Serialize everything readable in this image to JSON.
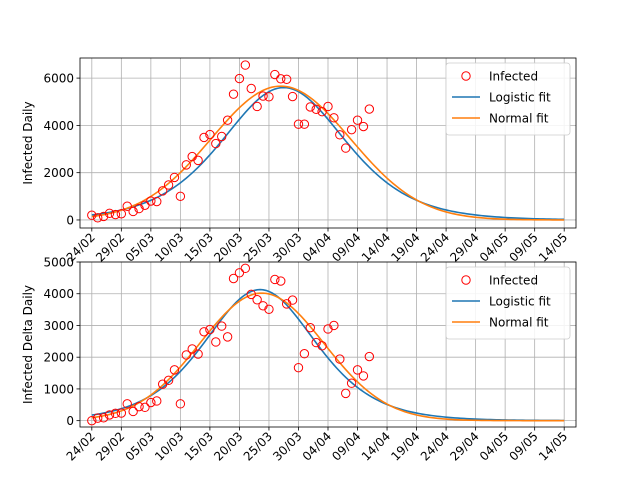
{
  "chart_data": [
    {
      "type": "line",
      "ylabel": "Infected Daily",
      "xlim": [
        -2,
        82
      ],
      "ylim": [
        -340,
        6850
      ],
      "x_tick_labels": [
        "24/02",
        "29/02",
        "05/03",
        "10/03",
        "15/03",
        "20/03",
        "25/03",
        "30/03",
        "04/04",
        "09/04",
        "14/04",
        "19/04",
        "24/04",
        "29/04",
        "04/05",
        "09/05",
        "14/05"
      ],
      "y_ticks": [
        0,
        2000,
        4000,
        6000
      ],
      "y_tick_labels": [
        "0",
        "2000",
        "4000",
        "6000"
      ],
      "grid": true,
      "legend_position": "top-right",
      "series": [
        {
          "name": "Infected",
          "kind": "scatter",
          "color": "#ff0000",
          "x": [
            0,
            1,
            2,
            3,
            4,
            5,
            6,
            7,
            8,
            9,
            10,
            11,
            12,
            13,
            14,
            15,
            16,
            17,
            18,
            19,
            20,
            21,
            22,
            23,
            24,
            25,
            26,
            27,
            28,
            29,
            30,
            31,
            32,
            33,
            34,
            35,
            36,
            37,
            38,
            39,
            40,
            41,
            42,
            43,
            44,
            45,
            46
          ],
          "values": [
            200,
            90,
            150,
            280,
            230,
            260,
            580,
            360,
            480,
            620,
            800,
            780,
            1230,
            1480,
            1800,
            1000,
            2330,
            2680,
            2520,
            3490,
            3610,
            3230,
            3530,
            4220,
            5320,
            5980,
            6550,
            5560,
            4800,
            5240,
            5210,
            6150,
            5970,
            5950,
            5220,
            4050,
            4050,
            4780,
            4680,
            4580,
            4800,
            4320,
            3600,
            3040,
            3820,
            4220,
            3950
          ],
          "extra_x": [
            47
          ],
          "extra_values": [
            4690
          ]
        },
        {
          "name": "Logistic fit",
          "kind": "logistic",
          "color": "#1f77b4",
          "peak_value": 5600,
          "peak_x": 32.5,
          "scale": 7.0,
          "x_range": [
            0,
            80
          ]
        },
        {
          "name": "Normal fit",
          "kind": "normal",
          "color": "#ff7f0e",
          "peak_value": 5660,
          "peak_x": 32.0,
          "sigma": 11.8,
          "x_range": [
            0,
            80
          ]
        }
      ]
    },
    {
      "type": "line",
      "ylabel": "Infected Delta Daily",
      "xlim": [
        -2,
        82
      ],
      "ylim": [
        -200,
        5000
      ],
      "x_tick_labels": [
        "24/02",
        "29/02",
        "05/03",
        "10/03",
        "15/03",
        "20/03",
        "25/03",
        "30/03",
        "04/04",
        "09/04",
        "14/04",
        "19/04",
        "24/04",
        "29/04",
        "04/05",
        "09/05",
        "14/05"
      ],
      "y_ticks": [
        0,
        1000,
        2000,
        3000,
        4000,
        5000
      ],
      "y_tick_labels": [
        "0",
        "1000",
        "2000",
        "3000",
        "4000",
        "5000"
      ],
      "grid": true,
      "legend_position": "top-right",
      "series": [
        {
          "name": "Infected",
          "kind": "scatter",
          "color": "#ff0000",
          "x": [
            0,
            1,
            2,
            3,
            4,
            5,
            6,
            7,
            8,
            9,
            10,
            11,
            12,
            13,
            14,
            15,
            16,
            17,
            18,
            19,
            20,
            21,
            22,
            23,
            24,
            25,
            26,
            27,
            28,
            29,
            30,
            31,
            32,
            33,
            34,
            35,
            36,
            37,
            38,
            39,
            40,
            41,
            42,
            43,
            44,
            45,
            46,
            47
          ],
          "values": [
            0,
            80,
            90,
            180,
            230,
            240,
            530,
            290,
            440,
            420,
            570,
            620,
            1150,
            1270,
            1600,
            530,
            2070,
            2260,
            2100,
            2800,
            2870,
            2480,
            2980,
            2640,
            4480,
            4660,
            4800,
            3980,
            3810,
            3620,
            3510,
            4450,
            4400,
            3680,
            3800,
            1670,
            2110,
            2930,
            2460,
            2360,
            2890,
            3000,
            1940,
            860,
            1180,
            1600,
            1410,
            2020
          ]
        },
        {
          "name": "Logistic fit",
          "kind": "logistic",
          "color": "#1f77b4",
          "peak_value": 4130,
          "peak_x": 28.5,
          "scale": 6.3,
          "x_range": [
            0,
            80
          ]
        },
        {
          "name": "Normal fit",
          "kind": "normal",
          "color": "#ff7f0e",
          "peak_value": 4020,
          "peak_x": 28.8,
          "sigma": 10.5,
          "x_range": [
            0,
            80
          ]
        }
      ]
    }
  ]
}
